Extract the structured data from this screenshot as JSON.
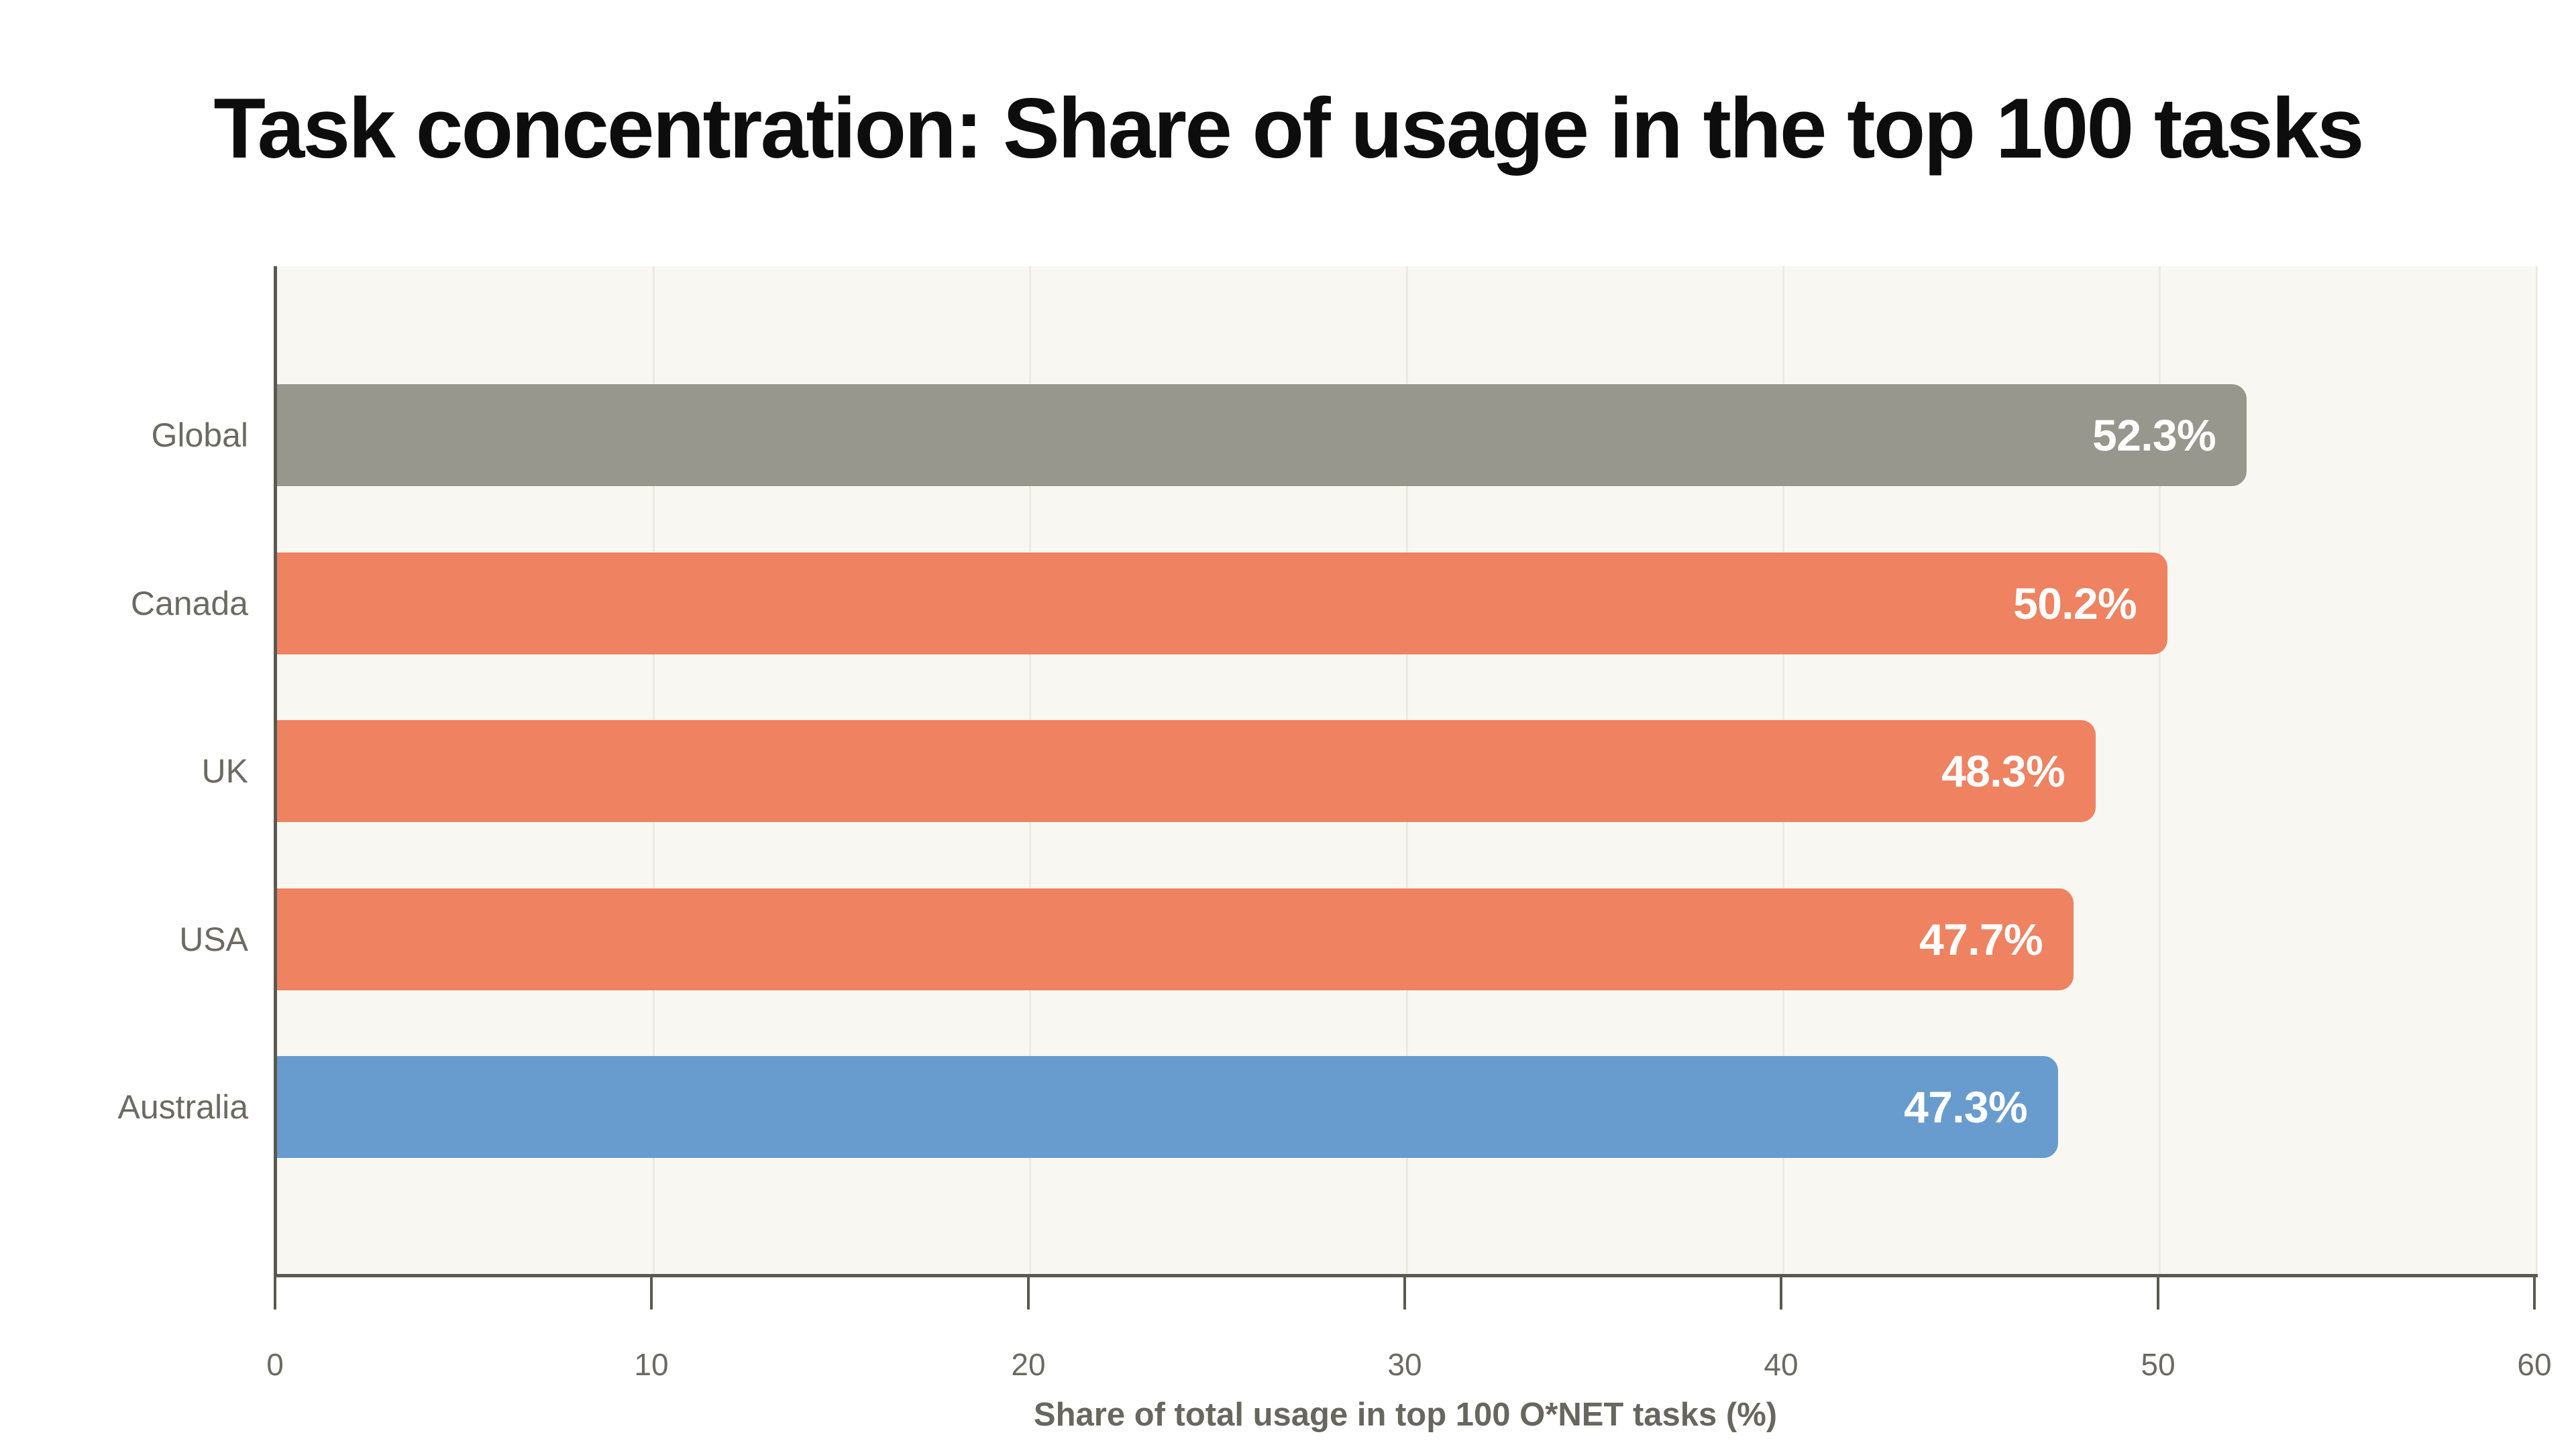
{
  "title": "Task concentration: Share of usage in the top 100 tasks",
  "chart_data": {
    "type": "bar",
    "orientation": "horizontal",
    "title": "Task concentration: Share of usage in the top 100 tasks",
    "xlabel": "Share of total usage in top 100 O*NET tasks (%)",
    "ylabel": "",
    "xlim": [
      0,
      60
    ],
    "xticks": [
      0,
      10,
      20,
      30,
      40,
      50,
      60
    ],
    "grid": true,
    "legend": false,
    "categories": [
      "Global",
      "Canada",
      "UK",
      "USA",
      "Australia"
    ],
    "values": [
      52.3,
      50.2,
      48.3,
      47.7,
      47.3
    ],
    "value_labels": [
      "52.3%",
      "50.2%",
      "48.3%",
      "47.7%",
      "47.3%"
    ],
    "series": [
      {
        "name": "Share of total usage in top 100 O*NET tasks (%)",
        "values": [
          52.3,
          50.2,
          48.3,
          47.7,
          47.3
        ]
      }
    ],
    "colors": {
      "bars": [
        "#98978d",
        "#ee8261",
        "#ee8261",
        "#ee8261",
        "#699cce"
      ],
      "plot_background": "#f9f7f1",
      "gridline": "#edeae2",
      "axis": "#5a5950",
      "tick_label": "#6b6a63",
      "category_label": "#6b6a63",
      "axis_title": "#67665f",
      "value_label": "#ffffff",
      "title": "#0d0d0d"
    }
  }
}
